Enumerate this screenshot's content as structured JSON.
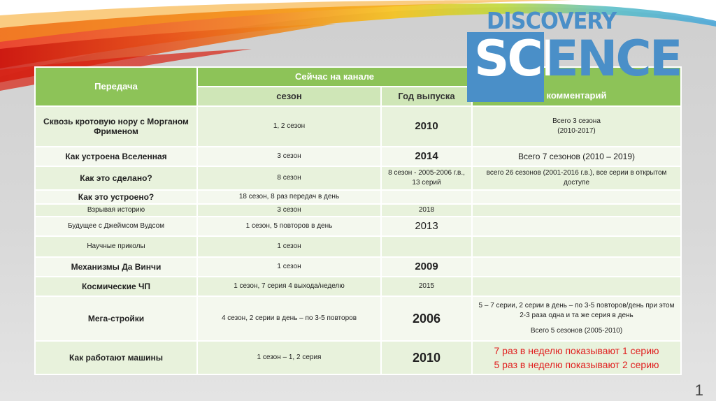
{
  "logo": {
    "top": "DISCOVERY",
    "sci": "SCI",
    "ence": "ENCE"
  },
  "headers": {
    "program": "Передача",
    "now": "Сейчас на канале",
    "season": "сезон",
    "year": "Год выпуска",
    "comment": "комментарий"
  },
  "rows": [
    {
      "name": "Сквозь кротовую нору с Морганом Фрименом",
      "season": "1, 2 сезон",
      "year": "2010",
      "comment": [
        "Всего 3 сезона",
        "(2010-2017)"
      ]
    },
    {
      "name": "Как устроена Вселенная",
      "season": "3 сезон",
      "year": "2014",
      "comment": [
        "Всего 7 сезонов (2010 – 2019)"
      ]
    },
    {
      "name": "Как это сделано?",
      "season": "8 сезон",
      "year": "8 сезон - 2005-2006 г.в., 13 серий",
      "comment": [
        "всего 26 сезонов (2001-2016 г.в.), все серии в открытом доступе"
      ]
    },
    {
      "name": "Как это устроено?",
      "season": "18 сезон, 8 раз передач в день",
      "year": "",
      "comment": []
    },
    {
      "name": "Взрывая историю",
      "season": "3 сезон",
      "year": "2018",
      "comment": []
    },
    {
      "name": "Будущее с Джеймсом Вудсом",
      "season": "1 сезон, 5 повторов в день",
      "year": "2013",
      "comment": []
    },
    {
      "name": "Научные приколы",
      "season": "1 сезон",
      "year": "",
      "comment": []
    },
    {
      "name": "Механизмы Да Винчи",
      "season": "1 сезон",
      "year": "2009",
      "comment": []
    },
    {
      "name": "Космические ЧП",
      "season": "1 сезон, 7 серия 4 выхода/неделю",
      "year": "2015",
      "comment": []
    },
    {
      "name": "Мега-стройки",
      "season": "4 сезон, 2 серии в день – по 3-5 повторов",
      "year": "2006",
      "comment": [
        "5 – 7 серии, 2 серии в день – по 3-5 повторов/день при этом 2-3 раза одна и та же серия в день",
        "Всего 5 сезонов (2005-2010)"
      ]
    },
    {
      "name": "Как работают машины",
      "season": "1 сезон – 1, 2 серия",
      "year": "2010",
      "comment": [
        "7 раз в неделю показывают 1 серию",
        "5 раз в неделю показывают 2 серию"
      ]
    }
  ],
  "page_number": "1",
  "colors": {
    "header_green": "#8dc358",
    "logo_blue": "#4a8fc8",
    "red_text": "#e0201f"
  }
}
